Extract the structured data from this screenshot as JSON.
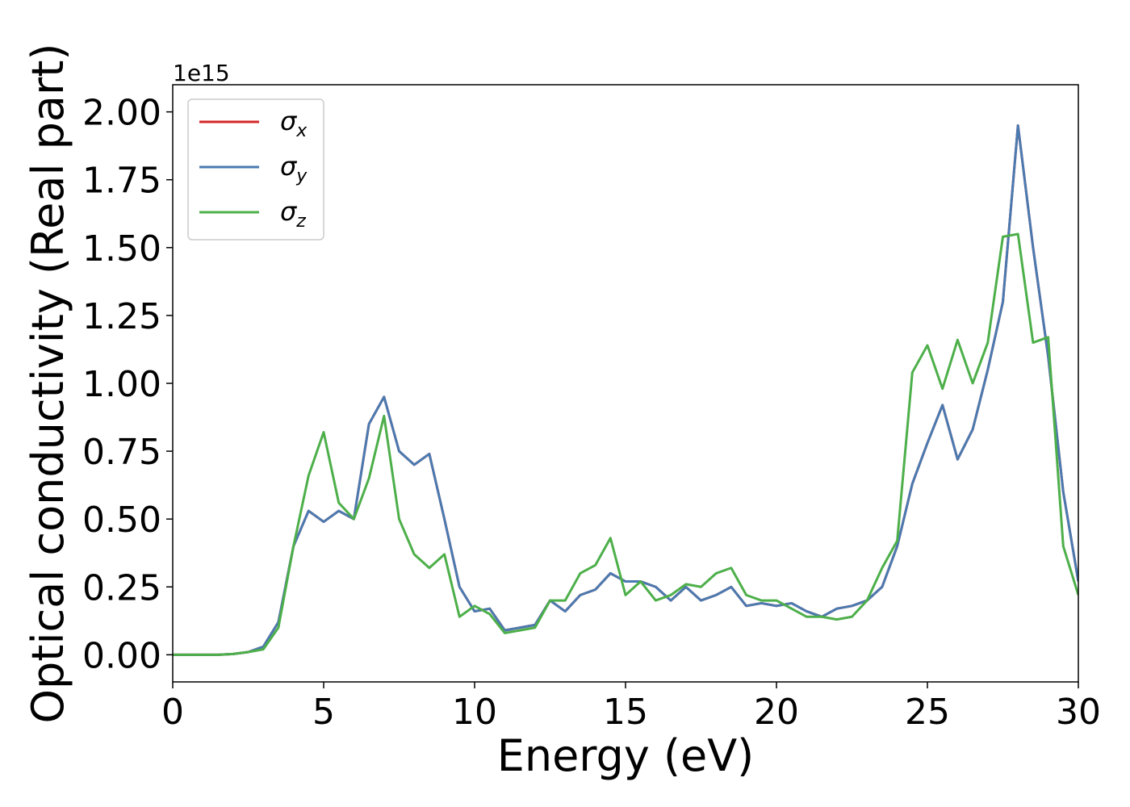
{
  "chart_data": {
    "type": "line",
    "xlabel": "Energy (eV)",
    "ylabel": "Optical conductivity (Real part)",
    "y_offset_label": "1e15",
    "x": [
      0,
      0.5,
      1,
      1.5,
      2,
      2.5,
      3,
      3.5,
      4,
      4.5,
      5,
      5.5,
      6,
      6.5,
      7,
      7.5,
      8,
      8.5,
      9,
      9.5,
      10,
      10.5,
      11,
      11.5,
      12,
      12.5,
      13,
      13.5,
      14,
      14.5,
      15,
      15.5,
      16,
      16.5,
      17,
      17.5,
      18,
      18.5,
      19,
      19.5,
      20,
      20.5,
      21,
      21.5,
      22,
      22.5,
      23,
      23.5,
      24,
      24.5,
      25,
      25.5,
      26,
      26.5,
      27,
      27.5,
      28,
      28.5,
      29,
      29.5,
      30
    ],
    "series": [
      {
        "name": "σx",
        "color": "#d62728",
        "values": [
          0,
          0,
          0,
          0,
          0.003,
          0.01,
          0.03,
          0.12,
          0.4,
          0.53,
          0.49,
          0.53,
          0.5,
          0.85,
          0.95,
          0.75,
          0.7,
          0.74,
          0.5,
          0.25,
          0.16,
          0.17,
          0.09,
          0.1,
          0.11,
          0.2,
          0.16,
          0.22,
          0.24,
          0.3,
          0.27,
          0.27,
          0.25,
          0.2,
          0.25,
          0.2,
          0.22,
          0.25,
          0.18,
          0.19,
          0.18,
          0.19,
          0.16,
          0.14,
          0.17,
          0.18,
          0.2,
          0.25,
          0.4,
          0.63,
          0.78,
          0.92,
          0.72,
          0.83,
          1.05,
          1.3,
          1.95,
          1.5,
          1.1,
          0.6,
          0.27
        ]
      },
      {
        "name": "σy",
        "color": "#4a7ab0",
        "values": [
          0,
          0,
          0,
          0,
          0.003,
          0.01,
          0.03,
          0.12,
          0.4,
          0.53,
          0.49,
          0.53,
          0.5,
          0.85,
          0.95,
          0.75,
          0.7,
          0.74,
          0.5,
          0.25,
          0.16,
          0.17,
          0.09,
          0.1,
          0.11,
          0.2,
          0.16,
          0.22,
          0.24,
          0.3,
          0.27,
          0.27,
          0.25,
          0.2,
          0.25,
          0.2,
          0.22,
          0.25,
          0.18,
          0.19,
          0.18,
          0.19,
          0.16,
          0.14,
          0.17,
          0.18,
          0.2,
          0.25,
          0.4,
          0.63,
          0.78,
          0.92,
          0.72,
          0.83,
          1.05,
          1.3,
          1.95,
          1.5,
          1.1,
          0.6,
          0.27
        ]
      },
      {
        "name": "σz",
        "color": "#4daf4a",
        "values": [
          0,
          0,
          0,
          0,
          0.003,
          0.01,
          0.02,
          0.1,
          0.4,
          0.66,
          0.82,
          0.56,
          0.5,
          0.65,
          0.88,
          0.5,
          0.37,
          0.32,
          0.37,
          0.14,
          0.18,
          0.15,
          0.08,
          0.09,
          0.1,
          0.2,
          0.2,
          0.3,
          0.33,
          0.43,
          0.22,
          0.27,
          0.2,
          0.22,
          0.26,
          0.25,
          0.3,
          0.32,
          0.22,
          0.2,
          0.2,
          0.17,
          0.14,
          0.14,
          0.13,
          0.14,
          0.2,
          0.32,
          0.42,
          1.04,
          1.14,
          0.98,
          1.16,
          1.0,
          1.15,
          1.54,
          1.55,
          1.15,
          1.17,
          0.4,
          0.22
        ]
      }
    ],
    "xlim": [
      0,
      30
    ],
    "xticks": [
      0,
      5,
      10,
      15,
      20,
      25,
      30
    ],
    "ylim": [
      -0.1,
      2.1
    ],
    "yticks": [
      {
        "value": 0,
        "label": "0.00"
      },
      {
        "value": 0.25,
        "label": "0.25"
      },
      {
        "value": 0.5,
        "label": "0.50"
      },
      {
        "value": 0.75,
        "label": "0.75"
      },
      {
        "value": 1,
        "label": "1.00"
      },
      {
        "value": 1.25,
        "label": "1.25"
      },
      {
        "value": 1.5,
        "label": "1.50"
      },
      {
        "value": 1.75,
        "label": "1.75"
      },
      {
        "value": 2,
        "label": "2.00"
      }
    ],
    "legend": "upper left",
    "grid": false
  }
}
